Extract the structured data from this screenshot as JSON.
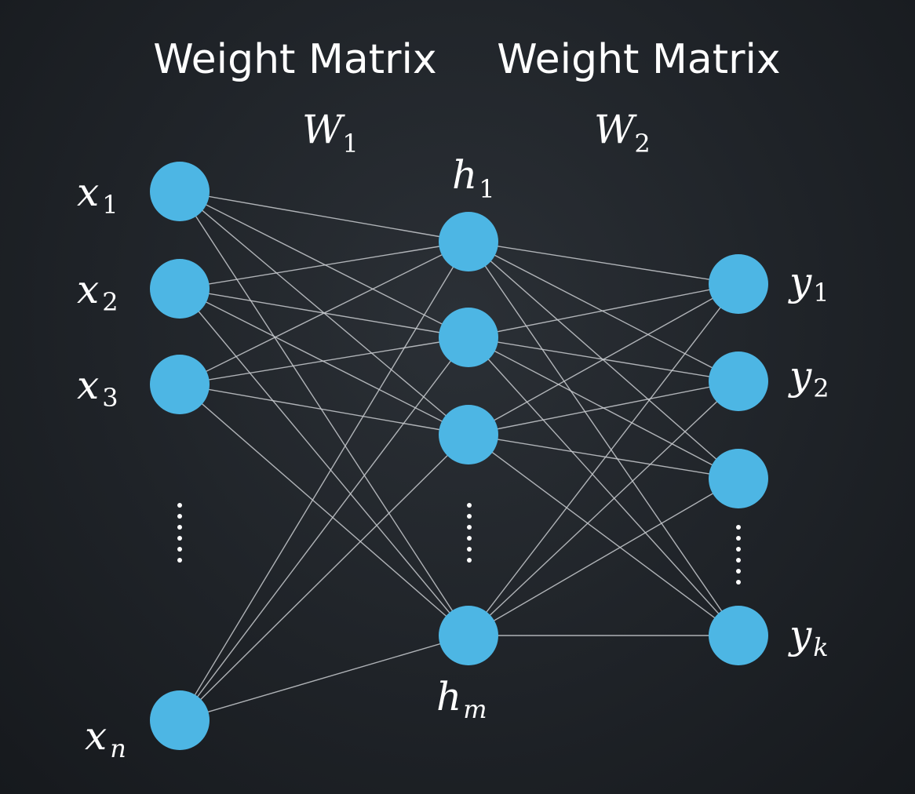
{
  "headings": {
    "left": "Weight Matrix",
    "right": "Weight Matrix"
  },
  "weights": {
    "w1": {
      "base": "W",
      "sub": "1"
    },
    "w2": {
      "base": "W",
      "sub": "2"
    }
  },
  "input_labels": [
    {
      "base": "x",
      "sub": "1"
    },
    {
      "base": "x",
      "sub": "2"
    },
    {
      "base": "x",
      "sub": "3"
    },
    {
      "base": "x",
      "sub": "n"
    }
  ],
  "hidden_labels": [
    {
      "base": "h",
      "sub": "1"
    },
    {
      "base": "h",
      "sub": "m"
    }
  ],
  "output_labels": [
    {
      "base": "y",
      "sub": "1"
    },
    {
      "base": "y",
      "sub": "2"
    },
    {
      "base": "y",
      "sub": "k"
    }
  ],
  "colors": {
    "node": "#4db6e4",
    "edge": "#c9ccd0",
    "background": "#1f2328",
    "text": "#ffffff"
  }
}
